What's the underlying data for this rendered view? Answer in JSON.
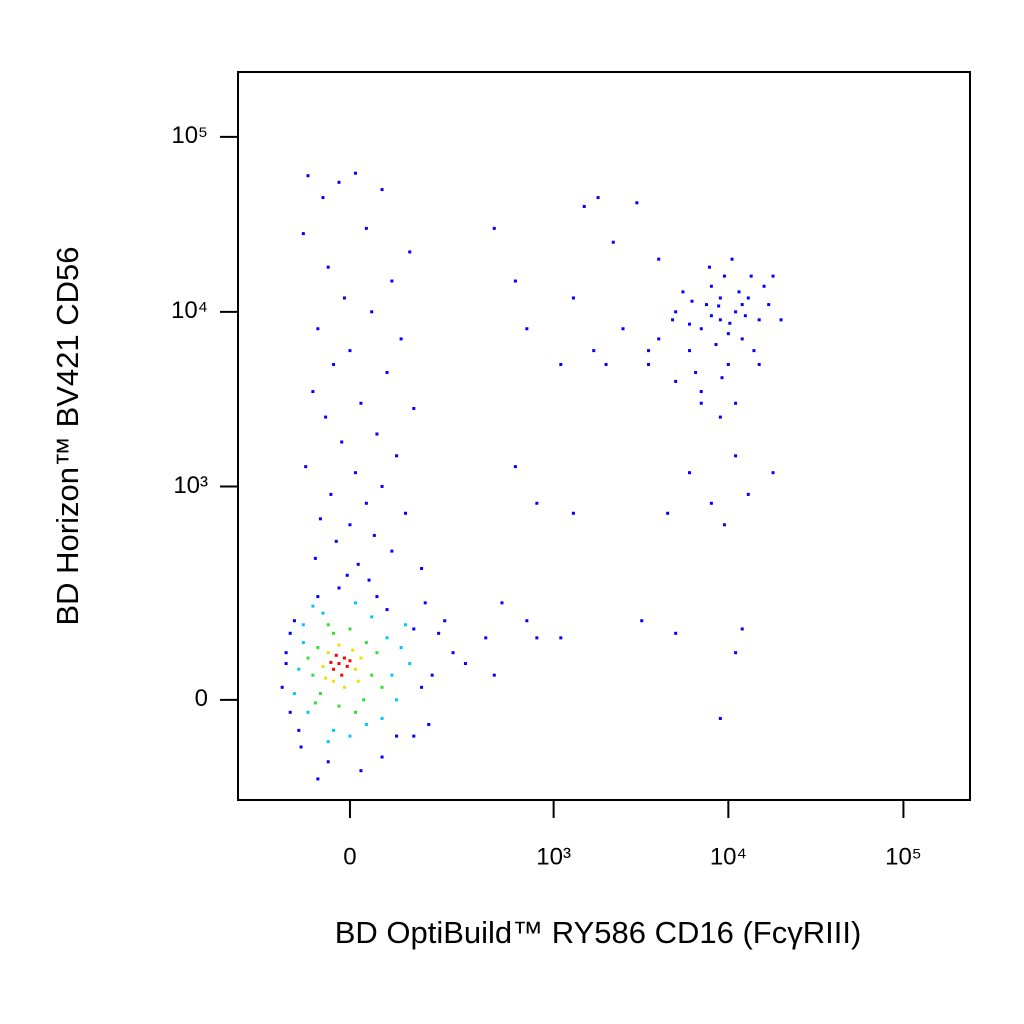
{
  "chart_data": {
    "type": "scatter",
    "xlabel": "BD OptiBuild™ RY586 CD16 (FcγRIII)",
    "ylabel": "BD Horizon™ BV421 CD56",
    "xscale": "biexponential",
    "yscale": "biexponential",
    "xlim": [
      -285,
      240000
    ],
    "ylim": [
      -210,
      235000
    ],
    "xticks": [
      0,
      {
        "value": 1000,
        "label": "10³"
      },
      {
        "value": 10000,
        "label": "10⁴"
      },
      {
        "value": 100000,
        "label": "10⁵"
      }
    ],
    "yticks": [
      0,
      {
        "value": 1000,
        "label": "10³"
      },
      {
        "value": 10000,
        "label": "10⁴"
      },
      {
        "value": 100000,
        "label": "10⁵"
      }
    ],
    "series": [
      {
        "color": "#0000ff",
        "x": [
          -80,
          -20,
          10,
          -50,
          60,
          -90,
          30,
          120,
          -40,
          80,
          -10,
          40,
          -60,
          100,
          0,
          -30,
          70,
          -70,
          20,
          130,
          -45,
          50,
          -15,
          90,
          -85,
          10,
          60,
          -35,
          30,
          110,
          -55,
          0,
          45,
          -25,
          80,
          -65,
          15,
          150,
          -5,
          35,
          160,
          -110,
          200,
          -130,
          180,
          -120,
          130,
          -95,
          60,
          -40,
          20,
          -60,
          250,
          300,
          220,
          -140,
          400,
          450,
          170,
          1500,
          1800,
          3000,
          2200,
          4000,
          1300,
          2500,
          3500,
          2000,
          5000,
          7000,
          9000,
          11000,
          6000,
          13000,
          18000,
          8000,
          4500,
          9500,
          600,
          800,
          1300,
          3200,
          5000,
          12000,
          11000,
          9000,
          700,
          800,
          500,
          1100,
          450,
          600,
          700,
          1100,
          1700,
          9000,
          7000,
          11000,
          6000,
          13000,
          8000,
          10000,
          5000,
          15000,
          12000,
          7500,
          9500,
          4000,
          17000,
          6500,
          11500,
          8500,
          14000,
          5500,
          10500,
          16000,
          7000,
          9000,
          12500,
          3500,
          20000,
          8000,
          6000,
          13500,
          10000,
          4800,
          9200,
          11000,
          7800,
          15000,
          18000,
          6200,
          8800,
          12000,
          10200,
          -120,
          130,
          -100,
          90,
          -60,
          50,
          150,
          -130,
          -20,
          70
        ],
        "values": [
          60000,
          55000,
          62000,
          45000,
          50000,
          28000,
          30000,
          22000,
          18000,
          15000,
          12000,
          10000,
          8000,
          7000,
          6000,
          5000,
          4500,
          3500,
          3000,
          2800,
          2500,
          2000,
          1800,
          1500,
          1300,
          1200,
          1000,
          900,
          800,
          700,
          650,
          600,
          520,
          480,
          420,
          380,
          350,
          330,
          300,
          280,
          200,
          150,
          120,
          80,
          40,
          -20,
          -60,
          -80,
          -100,
          -110,
          -130,
          -150,
          80,
          60,
          150,
          20,
          110,
          40,
          -40,
          40000,
          45000,
          42000,
          25000,
          20000,
          12000,
          8000,
          6000,
          5000,
          4000,
          3000,
          2500,
          1500,
          1200,
          900,
          1200,
          800,
          700,
          600,
          1300,
          800,
          700,
          150,
          120,
          130,
          80,
          -30,
          150,
          110,
          200,
          110,
          30000,
          15000,
          8000,
          5000,
          6000,
          9000,
          8000,
          10000,
          6000,
          12000,
          14000,
          5000,
          10000,
          9000,
          7000,
          11000,
          16000,
          7000,
          11000,
          4500,
          13000,
          6500,
          6000,
          13000,
          20000,
          14000,
          3500,
          12000,
          9500,
          5000,
          9000,
          9500,
          8500,
          16000,
          7500,
          9000,
          4200,
          3000,
          18000,
          5000,
          16000,
          11500,
          10800,
          11000,
          8600,
          120,
          130,
          -50,
          -60,
          220,
          220,
          20,
          60,
          250,
          180
        ]
      },
      {
        "color": "#00c8ff",
        "x": [
          -90,
          70,
          -100,
          80,
          -50,
          40,
          -80,
          30,
          -30,
          90,
          -110,
          100,
          -70,
          10,
          60,
          -90,
          120,
          -40,
          0,
          110
        ],
        "values": [
          100,
          110,
          50,
          40,
          170,
          160,
          -20,
          -40,
          -50,
          0,
          10,
          90,
          190,
          200,
          -30,
          140,
          60,
          -70,
          -60,
          140
        ]
      },
      {
        "color": "#30e030",
        "x": [
          -60,
          30,
          -70,
          40,
          -30,
          -55,
          25,
          -20,
          50,
          -80,
          0,
          10,
          -40,
          60,
          -65
        ],
        "values": [
          90,
          100,
          40,
          40,
          120,
          10,
          0,
          -10,
          80,
          70,
          130,
          -20,
          140,
          20,
          -5
        ]
      },
      {
        "color": "#f0e000",
        "x": [
          -40,
          10,
          -30,
          5,
          -50,
          -20,
          20,
          -10,
          -45,
          15
        ],
        "values": [
          80,
          50,
          30,
          85,
          55,
          95,
          70,
          20,
          35,
          30
        ]
      },
      {
        "color": "#ff0000",
        "x": [
          -20,
          -10,
          -30,
          -15,
          -5,
          -25,
          0,
          -35
        ],
        "values": [
          60,
          70,
          50,
          40,
          55,
          75,
          65,
          62
        ]
      }
    ]
  }
}
